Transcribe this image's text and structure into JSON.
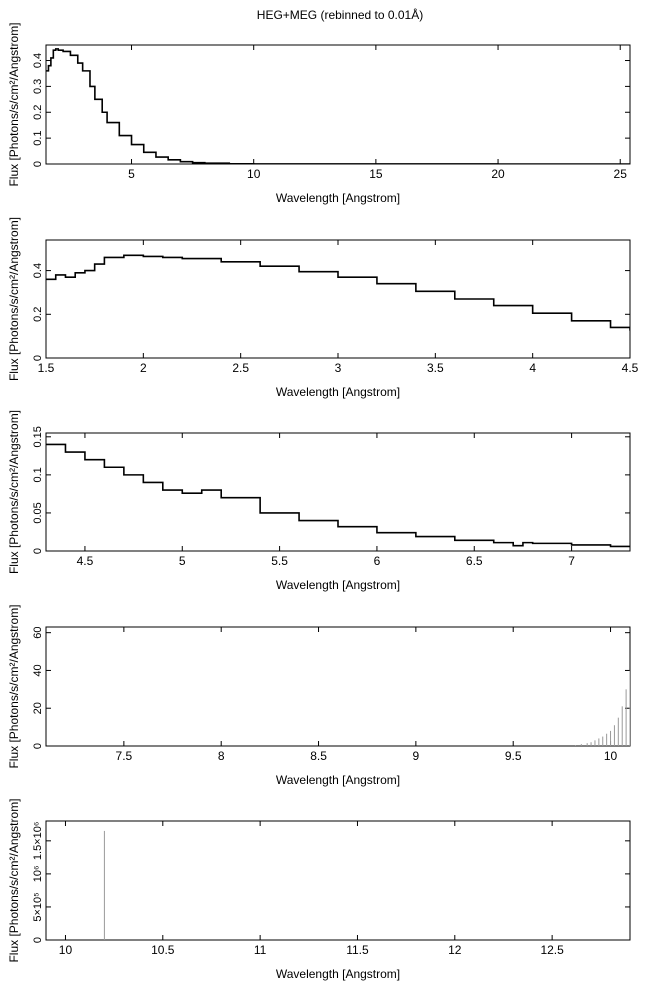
{
  "title": "HEG+MEG (rebinned to 0.01Å)",
  "chart_data": [
    {
      "type": "line",
      "xlabel": "Wavelength [Angstrom]",
      "ylabel": "Flux [Photons/s/cm²/Angstrom]",
      "xlim": [
        1.5,
        25.4
      ],
      "ylim": [
        0,
        0.46
      ],
      "xticks": [
        5,
        10,
        15,
        20,
        25
      ],
      "xtick_labels": [
        "5",
        "10",
        "15",
        "20",
        "25"
      ],
      "yticks": [
        0,
        0.1,
        0.2,
        0.3,
        0.4
      ],
      "ytick_labels": [
        "0",
        "0.1",
        "0.2",
        "0.3",
        "0.4"
      ],
      "style": "step",
      "series": [
        {
          "x": [
            1.5,
            1.6,
            1.7,
            1.8,
            1.9,
            2.0,
            2.2,
            2.5,
            2.8,
            3.0,
            3.3,
            3.5,
            3.8,
            4.0,
            4.5,
            5.0,
            5.5,
            6.0,
            6.5,
            7.0,
            7.5,
            8.0,
            9.0,
            10.0,
            12.0,
            15.0,
            20.0,
            25.4
          ],
          "y": [
            0.36,
            0.38,
            0.41,
            0.44,
            0.445,
            0.44,
            0.435,
            0.42,
            0.39,
            0.36,
            0.3,
            0.25,
            0.2,
            0.16,
            0.11,
            0.075,
            0.045,
            0.027,
            0.016,
            0.009,
            0.005,
            0.003,
            0.001,
            0.0005,
            0.0002,
            0.0001,
            0.0,
            0.0
          ]
        }
      ]
    },
    {
      "type": "line",
      "xlabel": "Wavelength [Angstrom]",
      "ylabel": "Flux [Photons/s/cm²/Angstrom]",
      "xlim": [
        1.5,
        4.5
      ],
      "ylim": [
        0,
        0.54
      ],
      "xticks": [
        1.5,
        2,
        2.5,
        3,
        3.5,
        4,
        4.5
      ],
      "xtick_labels": [
        "1.5",
        "2",
        "2.5",
        "3",
        "3.5",
        "4",
        "4.5"
      ],
      "yticks": [
        0,
        0.2,
        0.4
      ],
      "ytick_labels": [
        "0",
        "0.2",
        "0.4"
      ],
      "style": "step",
      "series": [
        {
          "x": [
            1.5,
            1.55,
            1.6,
            1.65,
            1.7,
            1.75,
            1.8,
            1.9,
            2.0,
            2.1,
            2.2,
            2.4,
            2.6,
            2.8,
            3.0,
            3.2,
            3.4,
            3.6,
            3.8,
            4.0,
            4.2,
            4.4,
            4.5
          ],
          "y": [
            0.36,
            0.38,
            0.37,
            0.39,
            0.4,
            0.43,
            0.46,
            0.47,
            0.465,
            0.46,
            0.455,
            0.44,
            0.42,
            0.395,
            0.37,
            0.34,
            0.305,
            0.27,
            0.24,
            0.205,
            0.17,
            0.14,
            0.125
          ]
        }
      ]
    },
    {
      "type": "line",
      "xlabel": "Wavelength [Angstrom]",
      "ylabel": "Flux [Photons/s/cm²/Angstrom]",
      "xlim": [
        4.3,
        7.3
      ],
      "ylim": [
        0,
        0.155
      ],
      "xticks": [
        4.5,
        5,
        5.5,
        6,
        6.5,
        7
      ],
      "xtick_labels": [
        "4.5",
        "5",
        "5.5",
        "6",
        "6.5",
        "7"
      ],
      "yticks": [
        0,
        0.05,
        0.1,
        0.15
      ],
      "ytick_labels": [
        "0",
        "0.05",
        "0.1",
        "0.15"
      ],
      "style": "step",
      "series": [
        {
          "x": [
            4.3,
            4.4,
            4.5,
            4.6,
            4.7,
            4.8,
            4.9,
            5.0,
            5.1,
            5.2,
            5.4,
            5.6,
            5.8,
            6.0,
            6.2,
            6.4,
            6.6,
            6.7,
            6.75,
            6.8,
            7.0,
            7.2,
            7.3
          ],
          "y": [
            0.14,
            0.13,
            0.12,
            0.11,
            0.1,
            0.09,
            0.08,
            0.076,
            0.08,
            0.07,
            0.05,
            0.04,
            0.032,
            0.024,
            0.019,
            0.014,
            0.011,
            0.007,
            0.011,
            0.01,
            0.008,
            0.006,
            0.005
          ]
        }
      ]
    },
    {
      "type": "line",
      "xlabel": "Wavelength [Angstrom]",
      "ylabel": "Flux [Photons/s/cm²/Angstrom]",
      "xlim": [
        7.1,
        10.1
      ],
      "ylim": [
        0,
        63
      ],
      "xticks": [
        7.5,
        8,
        8.5,
        9,
        9.5,
        10
      ],
      "xtick_labels": [
        "7.5",
        "8",
        "8.5",
        "9",
        "9.5",
        "10"
      ],
      "yticks": [
        0,
        20,
        40,
        60
      ],
      "ytick_labels": [
        "0",
        "20",
        "40",
        "60"
      ],
      "style": "spikes",
      "series": [
        {
          "x": [
            9.82,
            9.85,
            9.88,
            9.9,
            9.92,
            9.94,
            9.96,
            9.98,
            10.0,
            10.02,
            10.04,
            10.06,
            10.08,
            10.1
          ],
          "y": [
            0.5,
            1,
            1.5,
            2,
            3,
            4,
            5,
            6.5,
            8,
            11,
            15,
            21,
            30,
            40
          ]
        }
      ]
    },
    {
      "type": "line",
      "xlabel": "Wavelength [Angstrom]",
      "ylabel": "Flux [Photons/s/cm²/Angstrom]",
      "xlim": [
        9.9,
        12.9
      ],
      "ylim": [
        0,
        1800000
      ],
      "xticks": [
        10,
        10.5,
        11,
        11.5,
        12,
        12.5
      ],
      "xtick_labels": [
        "10",
        "10.5",
        "11",
        "11.5",
        "12",
        "12.5"
      ],
      "yticks": [
        0,
        500000,
        1000000,
        1500000
      ],
      "ytick_labels": [
        "0",
        "5×10⁵",
        "10⁶",
        "1.5×10⁶"
      ],
      "style": "spikes",
      "series": [
        {
          "x": [
            10.2
          ],
          "y": [
            1650000
          ]
        }
      ]
    }
  ]
}
